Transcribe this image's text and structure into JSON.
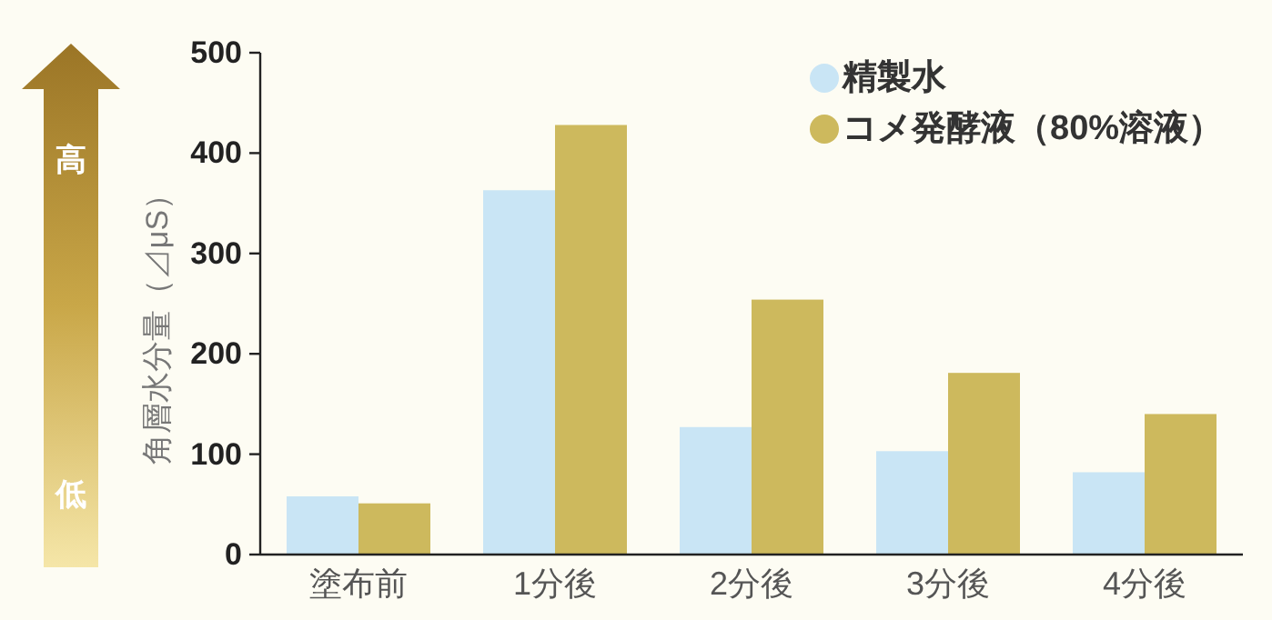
{
  "chart_data": {
    "type": "bar",
    "ylabel": "角層水分量（⊿μS）",
    "categories": [
      "塗布前",
      "1分後",
      "2分後",
      "3分後",
      "4分後"
    ],
    "series": [
      {
        "name": "精製水",
        "color": "#c9e5f5",
        "values": [
          58,
          363,
          127,
          103,
          82
        ]
      },
      {
        "name": "コメ発酵液（80%溶液）",
        "color": "#cdb95d",
        "values": [
          51,
          428,
          254,
          181,
          140
        ]
      }
    ],
    "ylim": [
      0,
      500
    ],
    "yticks": [
      0,
      100,
      200,
      300,
      400,
      500
    ],
    "legend": "top right",
    "annotations": [
      "高",
      "低"
    ]
  }
}
